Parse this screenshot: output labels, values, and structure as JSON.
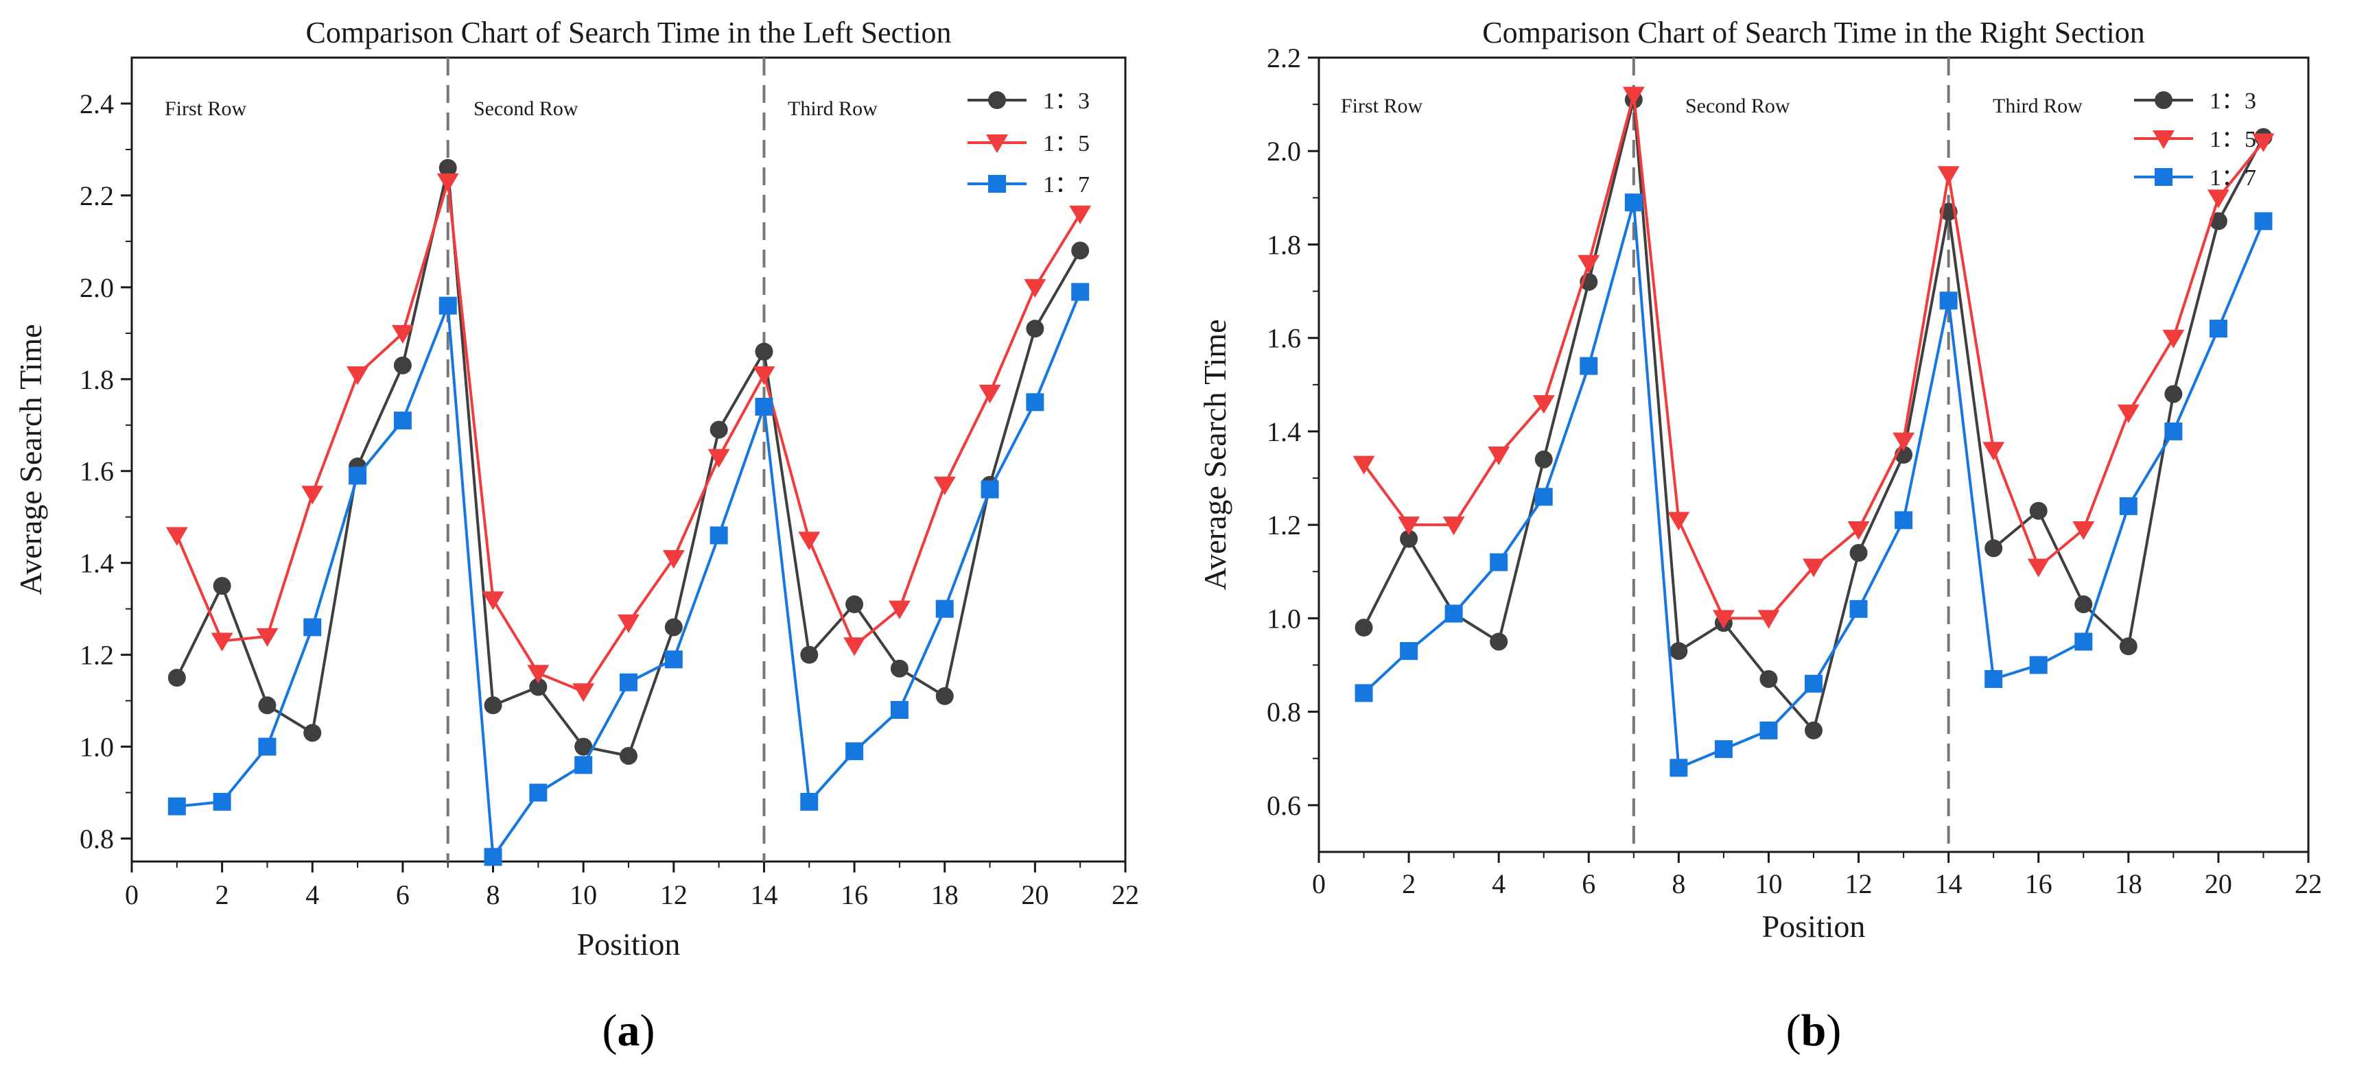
{
  "chart_data": [
    {
      "type": "line",
      "title": "Comparison Chart of Search Time in the Left Section",
      "xlabel": "Position",
      "ylabel": "Average Search Time",
      "panel_label": "a",
      "xlim": [
        0,
        22
      ],
      "ylim": [
        0.75,
        2.5
      ],
      "xticks": [
        0,
        2,
        4,
        6,
        8,
        10,
        12,
        14,
        16,
        18,
        20,
        22
      ],
      "yticks": [
        0.8,
        1.0,
        1.2,
        1.4,
        1.6,
        1.8,
        2.0,
        2.2,
        2.4
      ],
      "dividers": [
        7,
        14
      ],
      "sections": [
        "First Row",
        "Second Row",
        "Third Row"
      ],
      "legend_position": "top-right",
      "x": [
        1,
        2,
        3,
        4,
        5,
        6,
        7,
        8,
        9,
        10,
        11,
        12,
        13,
        14,
        15,
        16,
        17,
        18,
        19,
        20,
        21
      ],
      "series": [
        {
          "name": "1：3",
          "color": "#3f3f3f",
          "marker": "circle",
          "values": [
            1.15,
            1.35,
            1.09,
            1.03,
            1.61,
            1.83,
            2.26,
            1.09,
            1.13,
            1.0,
            0.98,
            1.26,
            1.69,
            1.86,
            1.2,
            1.31,
            1.17,
            1.11,
            1.57,
            1.91,
            2.08
          ]
        },
        {
          "name": "1：5",
          "color": "#f03c3c",
          "marker": "triangle-down",
          "values": [
            1.46,
            1.23,
            1.24,
            1.55,
            1.81,
            1.9,
            2.23,
            1.32,
            1.16,
            1.12,
            1.27,
            1.41,
            1.63,
            1.81,
            1.45,
            1.22,
            1.3,
            1.57,
            1.77,
            2.0,
            2.16
          ]
        },
        {
          "name": "1：7",
          "color": "#1777e0",
          "marker": "square",
          "values": [
            0.87,
            0.88,
            1.0,
            1.26,
            1.59,
            1.71,
            1.96,
            0.76,
            0.9,
            0.96,
            1.14,
            1.19,
            1.46,
            1.74,
            0.88,
            0.99,
            1.08,
            1.3,
            1.56,
            1.75,
            1.99
          ]
        }
      ]
    },
    {
      "type": "line",
      "title": "Comparison Chart of Search Time in the Right Section",
      "xlabel": "Position",
      "ylabel": "Average Search Time",
      "panel_label": "b",
      "xlim": [
        0,
        22
      ],
      "ylim": [
        0.5,
        2.2
      ],
      "xticks": [
        0,
        2,
        4,
        6,
        8,
        10,
        12,
        14,
        16,
        18,
        20,
        22
      ],
      "yticks": [
        0.6,
        0.8,
        1.0,
        1.2,
        1.4,
        1.6,
        1.8,
        2.0,
        2.2
      ],
      "dividers": [
        7,
        14
      ],
      "sections": [
        "First Row",
        "Second Row",
        "Third Row"
      ],
      "legend_position": "top-right",
      "x": [
        1,
        2,
        3,
        4,
        5,
        6,
        7,
        8,
        9,
        10,
        11,
        12,
        13,
        14,
        15,
        16,
        17,
        18,
        19,
        20,
        21
      ],
      "series": [
        {
          "name": "1：3",
          "color": "#3f3f3f",
          "marker": "circle",
          "values": [
            0.98,
            1.17,
            1.01,
            0.95,
            1.34,
            1.72,
            2.11,
            0.93,
            0.99,
            0.87,
            0.76,
            1.14,
            1.35,
            1.87,
            1.15,
            1.23,
            1.03,
            0.94,
            1.48,
            1.85,
            2.03
          ]
        },
        {
          "name": "1：5",
          "color": "#f03c3c",
          "marker": "triangle-down",
          "values": [
            1.33,
            1.2,
            1.2,
            1.35,
            1.46,
            1.76,
            2.12,
            1.21,
            1.0,
            1.0,
            1.11,
            1.19,
            1.38,
            1.95,
            1.36,
            1.11,
            1.19,
            1.44,
            1.6,
            1.9,
            2.02
          ]
        },
        {
          "name": "1：7",
          "color": "#1777e0",
          "marker": "square",
          "values": [
            0.84,
            0.93,
            1.01,
            1.12,
            1.26,
            1.54,
            1.89,
            0.68,
            0.72,
            0.76,
            0.86,
            1.02,
            1.21,
            1.68,
            0.87,
            0.9,
            0.95,
            1.24,
            1.4,
            1.62,
            1.85
          ]
        }
      ]
    }
  ]
}
